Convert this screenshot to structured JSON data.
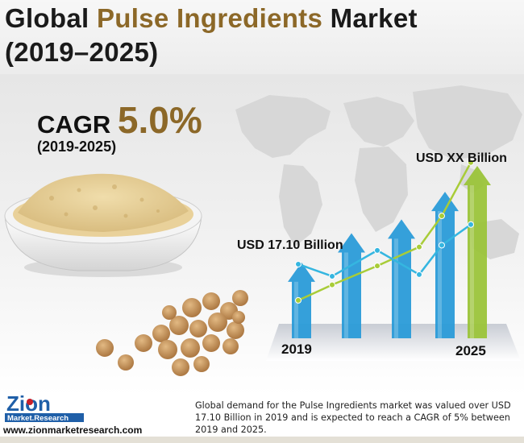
{
  "header": {
    "title_pre": "Global ",
    "title_highlight": "Pulse Ingredients",
    "title_post": " Market",
    "title_line2": "(2019–2025)"
  },
  "cagr": {
    "label": "CAGR ",
    "value": "5.0%",
    "period": "(2019-2025)"
  },
  "chart_data": {
    "type": "bar",
    "categories": [
      "2019",
      "2025"
    ],
    "annotations": {
      "start": "USD 17.10 Billion",
      "end": "USD XX Billion"
    },
    "values": [
      17.1,
      null
    ],
    "unit": "USD Billion",
    "growth_arrows": 5,
    "arrow_levels": [
      0.44,
      0.61,
      0.69,
      0.85,
      1.0
    ],
    "trend_lines": 2
  },
  "footer": {
    "brand": "Zion",
    "brand_sub": "Market.Research",
    "website": "www.zionmarketresearch.com",
    "description": "Global demand for the Pulse Ingredients market was valued over USD 17.10 Billion in 2019 and is expected to reach a CAGR of 5% between 2019 and 2025."
  },
  "colors": {
    "accent": "#8c6828",
    "arrow_blue": "#2a9bd8",
    "arrow_green": "#9bc43a",
    "line_blue": "#35b6e0",
    "line_green": "#a8cc38",
    "logo_blue": "#1f5fa8",
    "logo_red": "#c8202a"
  },
  "icons": [
    "world-map",
    "bowl-of-flour-image",
    "chickpeas-image",
    "zion-logo",
    "growth-arrow-icon"
  ]
}
